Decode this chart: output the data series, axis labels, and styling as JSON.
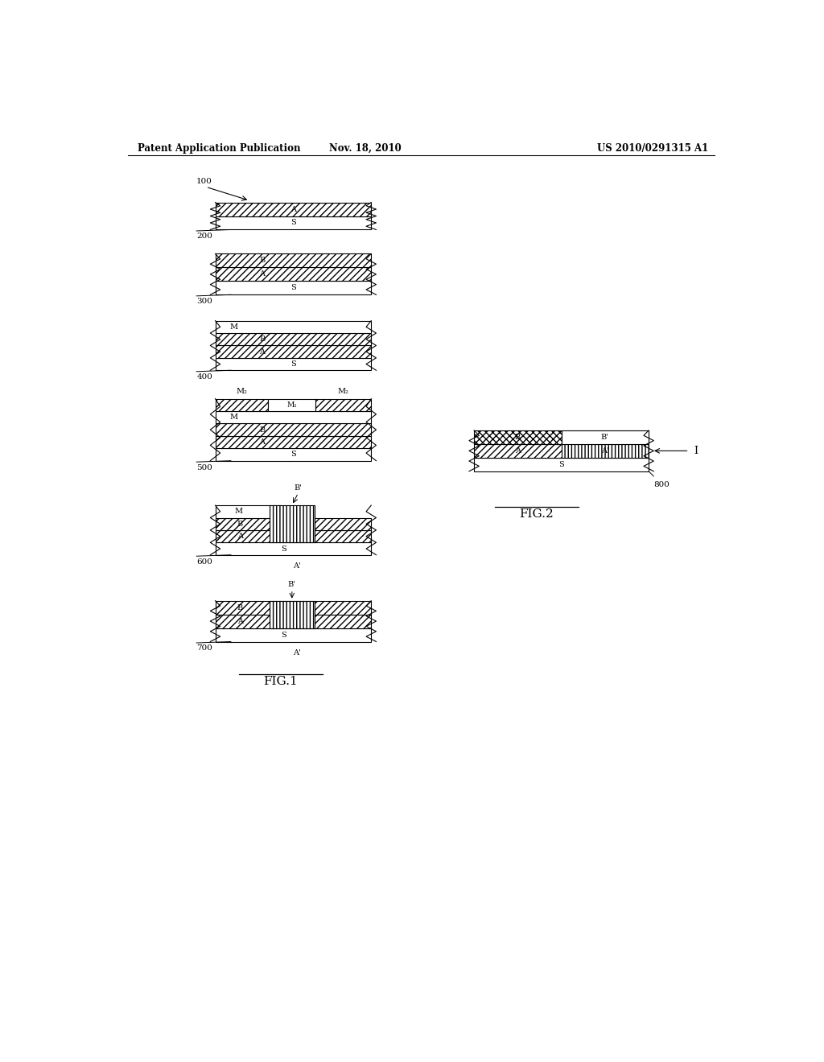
{
  "bg_color": "#ffffff",
  "header_left": "Patent Application Publication",
  "header_center": "Nov. 18, 2010",
  "header_right": "US 2010/0291315 A1",
  "fig1_label": "FIG.1",
  "fig2_label": "FIG.2"
}
